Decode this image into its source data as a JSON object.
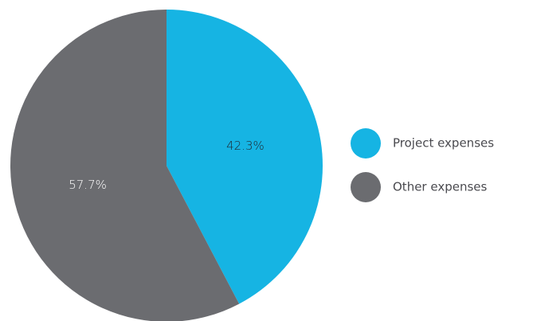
{
  "chart_data": {
    "type": "pie",
    "title": "",
    "start_angle_deg": 0,
    "direction": "clockwise",
    "slices": [
      {
        "label": "Project expenses",
        "value": 42.3,
        "display": "42.3%",
        "color": "#16b4e3",
        "text_color": "#1f2a33"
      },
      {
        "label": "Other expenses",
        "value": 57.7,
        "display": "57.7%",
        "color": "#6b6c70",
        "text_color": "#ffffff"
      }
    ],
    "legend_position": "right"
  }
}
